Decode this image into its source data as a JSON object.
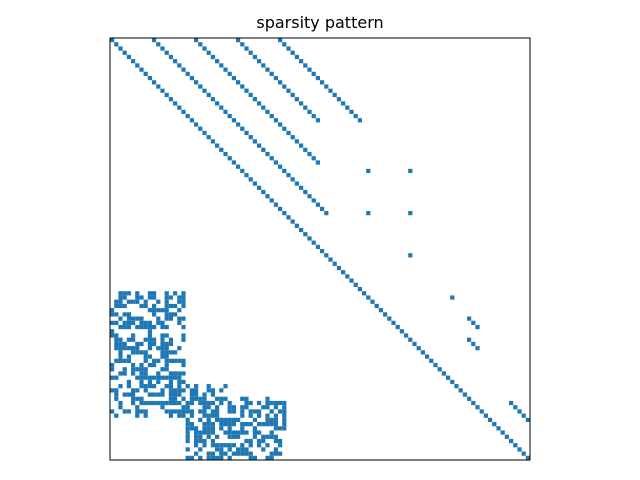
{
  "chart_data": {
    "type": "heatmap",
    "title": "sparsity pattern",
    "xlabel": "",
    "ylabel": "",
    "grid": false,
    "legend": "none",
    "matrix_size": [
      100,
      100
    ],
    "nonzero_color": "#1f77b4",
    "background_color": "#ffffff",
    "nonzeros": {
      "diagonal_offsets": [
        0,
        10,
        20,
        30,
        40
      ],
      "block_diagonals": [
        {
          "row_start": 0,
          "row_end": 20,
          "col_offset": 0
        },
        {
          "row_start": 0,
          "row_end": 20,
          "col_offset": 10
        },
        {
          "row_start": 0,
          "row_end": 20,
          "col_offset": 20
        },
        {
          "row_start": 0,
          "row_end": 20,
          "col_offset": 30
        },
        {
          "row_start": 0,
          "row_end": 20,
          "col_offset": 40
        }
      ],
      "extra_points": [
        [
          28,
          48
        ],
        [
          29,
          49
        ],
        [
          31,
          61
        ],
        [
          31,
          71
        ],
        [
          41,
          61
        ],
        [
          41,
          71
        ],
        [
          51,
          71
        ],
        [
          61,
          81
        ],
        [
          66,
          85
        ],
        [
          67,
          86
        ],
        [
          68,
          87
        ],
        [
          71,
          85
        ],
        [
          72,
          86
        ],
        [
          73,
          87
        ],
        [
          86,
          95
        ],
        [
          87,
          96
        ],
        [
          88,
          97
        ],
        [
          89,
          98
        ],
        [
          90,
          99
        ]
      ],
      "lower_left_block": {
        "row_range": [
          60,
          100
        ],
        "col_range": [
          0,
          42
        ]
      }
    }
  }
}
